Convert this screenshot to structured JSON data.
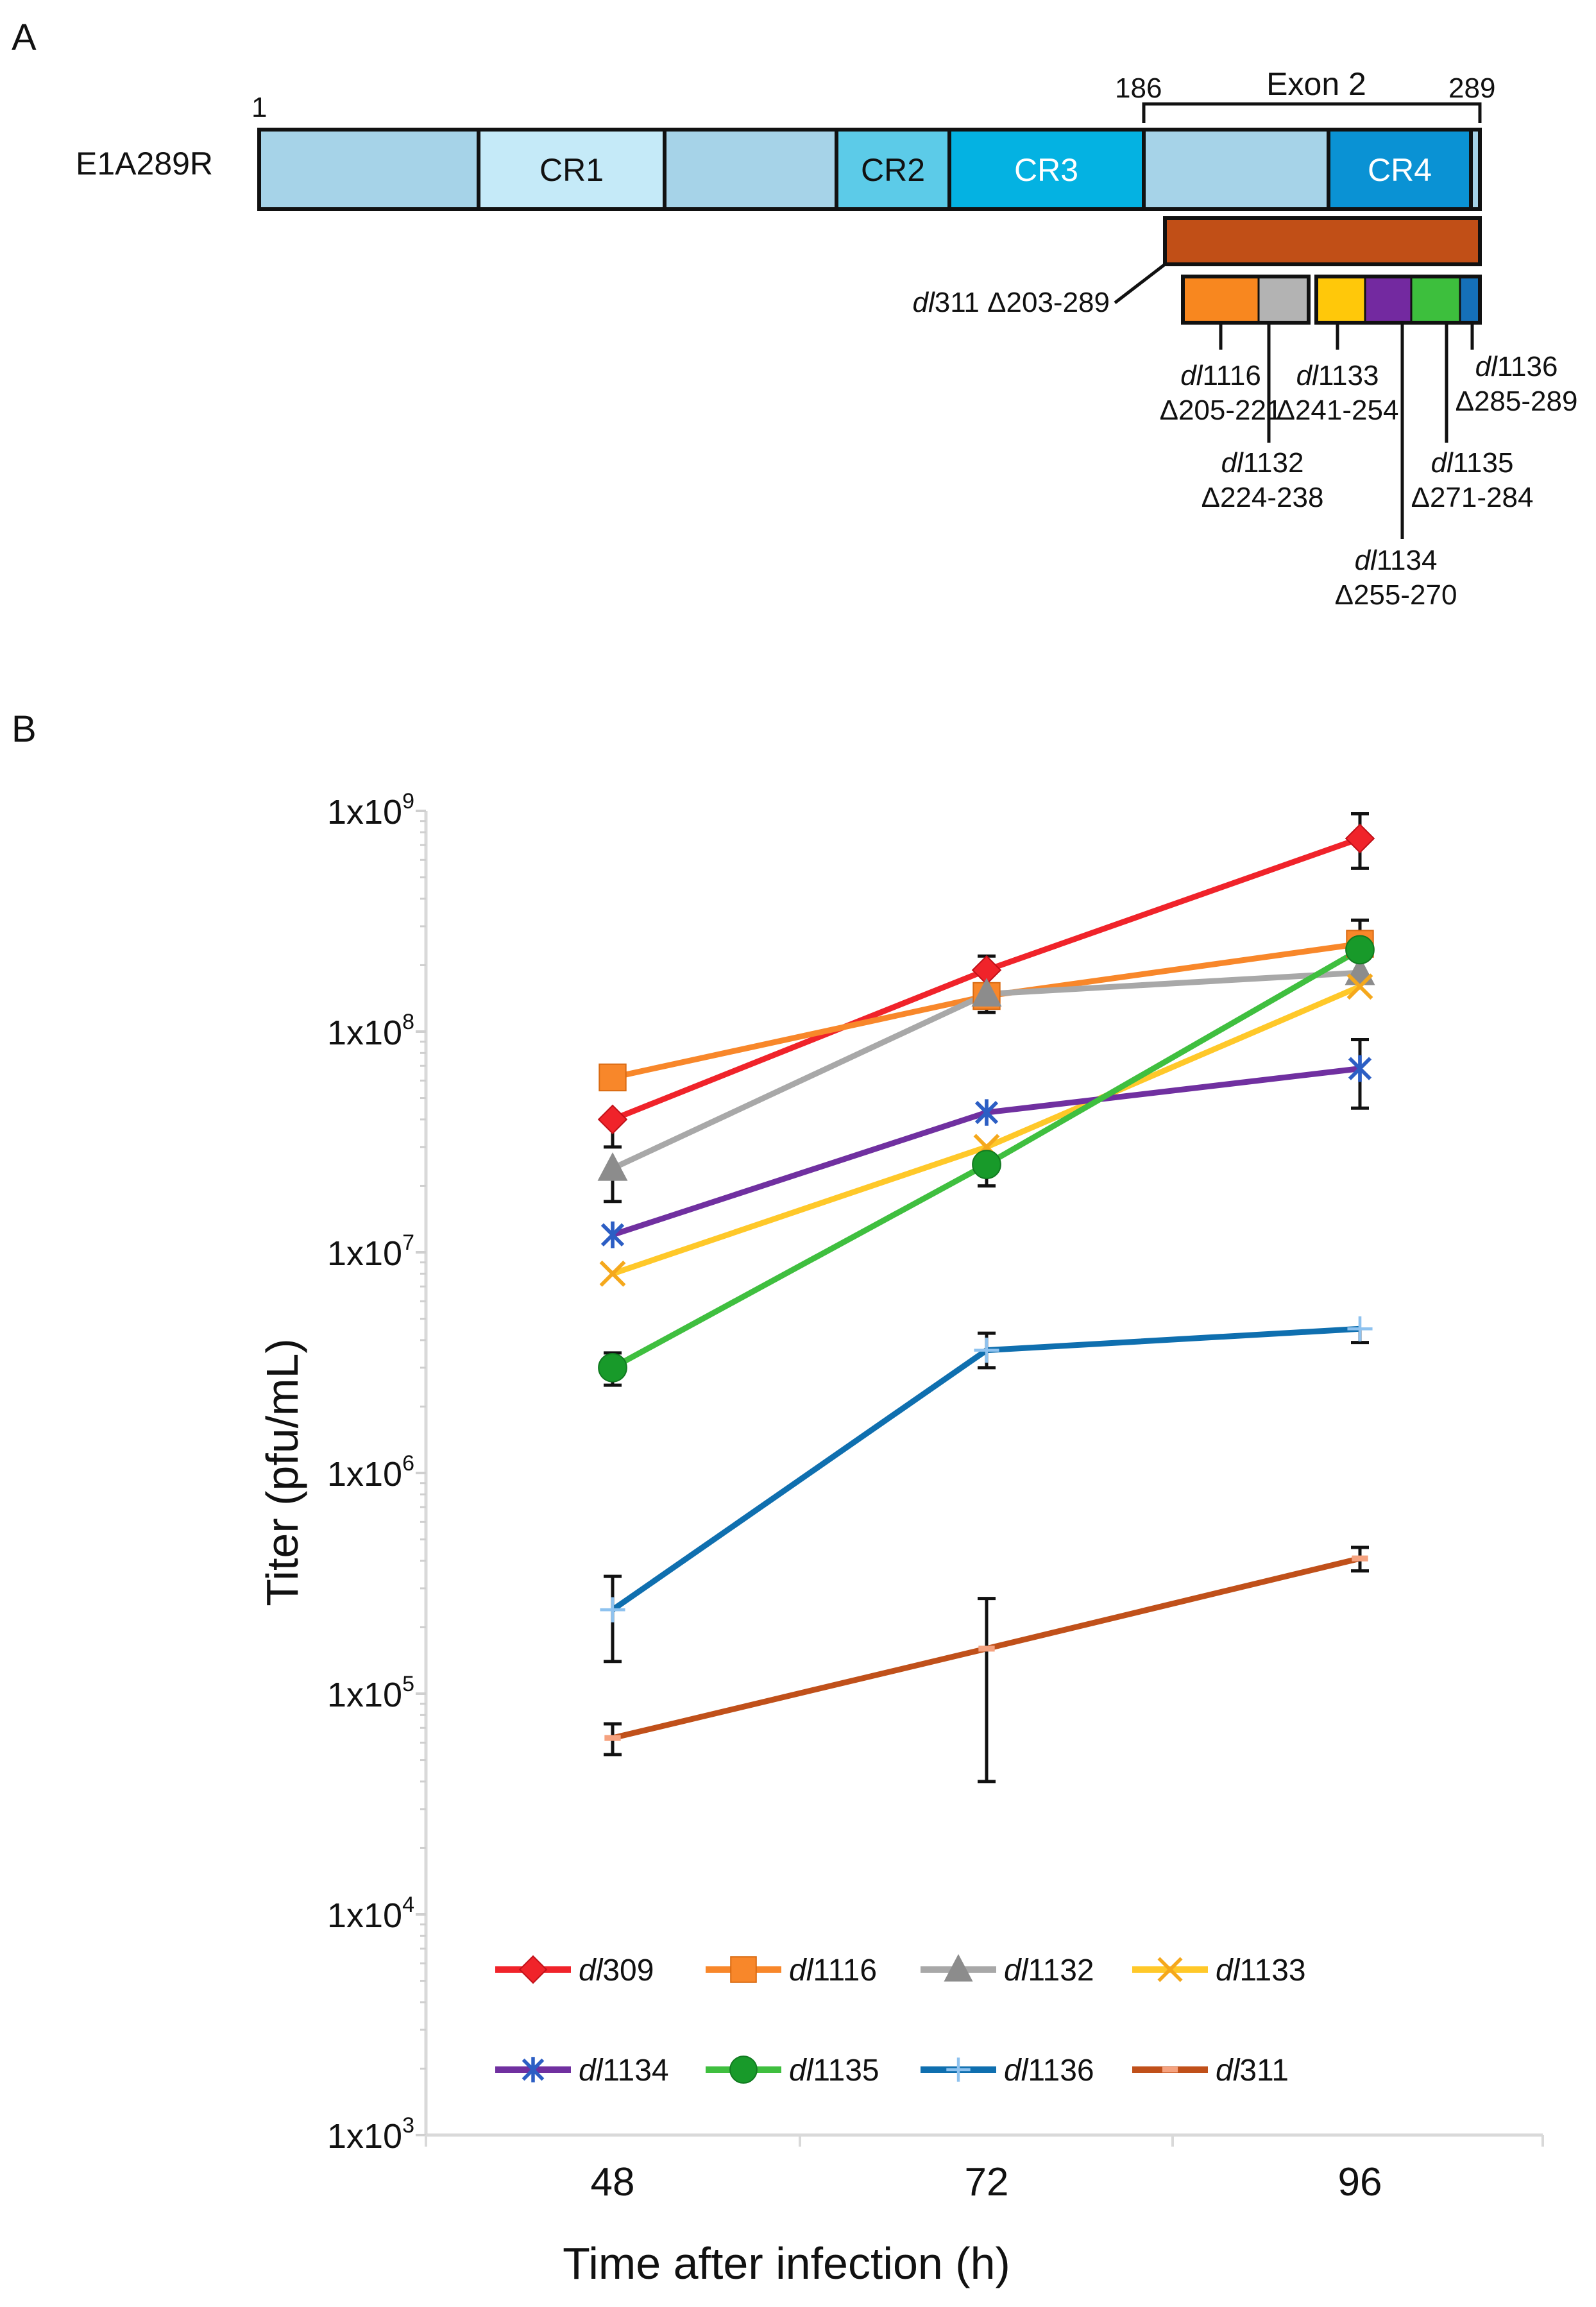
{
  "panel_a": {
    "label": "A",
    "protein": "E1A289R",
    "start": "1",
    "exon_start": "186",
    "exon_end": "289",
    "exon_label": "Exon 2",
    "regions": [
      {
        "label": "",
        "color": "#a6d3e8"
      },
      {
        "label": "CR1",
        "color": "#c5eaf8"
      },
      {
        "label": "",
        "color": "#a6d3e8"
      },
      {
        "label": "CR2",
        "color": "#5ccbe8"
      },
      {
        "label": "CR3",
        "color": "#04b2e2"
      },
      {
        "label": "",
        "color": "#a6d3e8"
      },
      {
        "label": "CR4",
        "color": "#0a92d4"
      },
      {
        "label": "",
        "color": "#a6d3e8"
      }
    ],
    "deletions": [
      {
        "name": "dl",
        "num": "311",
        "range": "Δ203-289",
        "color": "#c14f17"
      },
      {
        "name": "dl",
        "num": "1116",
        "range": "Δ205-221",
        "color": "#f8871f"
      },
      {
        "name": "dl",
        "num": "1132",
        "range": "Δ224-238",
        "color": "#b3b3b3"
      },
      {
        "name": "dl",
        "num": "1133",
        "range": "Δ241-254",
        "color": "#ffc80a"
      },
      {
        "name": "dl",
        "num": "1134",
        "range": "Δ255-270",
        "color": "#7329a0"
      },
      {
        "name": "dl",
        "num": "1135",
        "range": "Δ271-284",
        "color": "#3dbf3d"
      },
      {
        "name": "dl",
        "num": "1136",
        "range": "Δ285-289",
        "color": "#1570b8"
      }
    ]
  },
  "panel_b": {
    "label": "B"
  },
  "chart_data": {
    "type": "line",
    "x": [
      48,
      72,
      96
    ],
    "categories": [
      "48",
      "72",
      "96"
    ],
    "xlabel": "Time after infection (h)",
    "ylabel": "Titer (pfu/mL)",
    "yscale": "log",
    "ylim": [
      1000,
      1000000000
    ],
    "yticks": [
      {
        "base": "1x10",
        "exp": "3"
      },
      {
        "base": "1x10",
        "exp": "4"
      },
      {
        "base": "1x10",
        "exp": "5"
      },
      {
        "base": "1x10",
        "exp": "6"
      },
      {
        "base": "1x10",
        "exp": "7"
      },
      {
        "base": "1x10",
        "exp": "8"
      },
      {
        "base": "1x10",
        "exp": "9"
      }
    ],
    "series": [
      {
        "prefix": "dl",
        "num": "309",
        "color": "#f0232a",
        "marker": "diamond",
        "values": [
          40000000,
          190000000,
          750000000
        ],
        "err_low": [
          30000000,
          150000000,
          550000000
        ],
        "err_high": [
          null,
          220000000,
          970000000
        ]
      },
      {
        "prefix": "dl",
        "num": "1116",
        "color": "#f8872a",
        "marker": "square",
        "values": [
          62000000,
          145000000,
          250000000
        ],
        "err_low": [
          null,
          null,
          null
        ],
        "err_high": [
          null,
          null,
          null
        ]
      },
      {
        "prefix": "dl",
        "num": "1132",
        "color": "#a8a8a8",
        "marker": "triangle",
        "values": [
          24000000,
          148000000,
          185000000
        ],
        "err_low": [
          17000000,
          122000000,
          null
        ],
        "err_high": [
          null,
          null,
          null
        ]
      },
      {
        "prefix": "dl",
        "num": "1133",
        "color": "#ffc829",
        "marker": "x",
        "values": [
          8000000,
          30000000,
          160000000
        ],
        "err_low": [
          null,
          null,
          null
        ],
        "err_high": [
          null,
          null,
          null
        ]
      },
      {
        "prefix": "dl",
        "num": "1134",
        "color": "#7030a0",
        "marker": "asterisk",
        "values": [
          12000000,
          43000000,
          68000000
        ],
        "err_low": [
          null,
          null,
          45000000
        ],
        "err_high": [
          null,
          null,
          92000000
        ]
      },
      {
        "prefix": "dl",
        "num": "1135",
        "color": "#3fbf3f",
        "marker": "circle",
        "values": [
          3000000,
          25000000,
          235000000
        ],
        "err_low": [
          2500000,
          20000000,
          null
        ],
        "err_high": [
          3500000,
          null,
          320000000
        ]
      },
      {
        "prefix": "dl",
        "num": "1136",
        "color": "#0f6faf",
        "marker": "plus",
        "values": [
          240000,
          3600000,
          4500000
        ],
        "err_low": [
          140000,
          3000000,
          3900000
        ],
        "err_high": [
          340000,
          4300000,
          null
        ]
      },
      {
        "prefix": "dl",
        "num": "311",
        "color": "#c0501a",
        "marker": "dash",
        "values": [
          63000,
          160000,
          410000
        ],
        "err_low": [
          53000,
          40000,
          360000
        ],
        "err_high": [
          73000,
          270000,
          460000
        ]
      }
    ]
  }
}
